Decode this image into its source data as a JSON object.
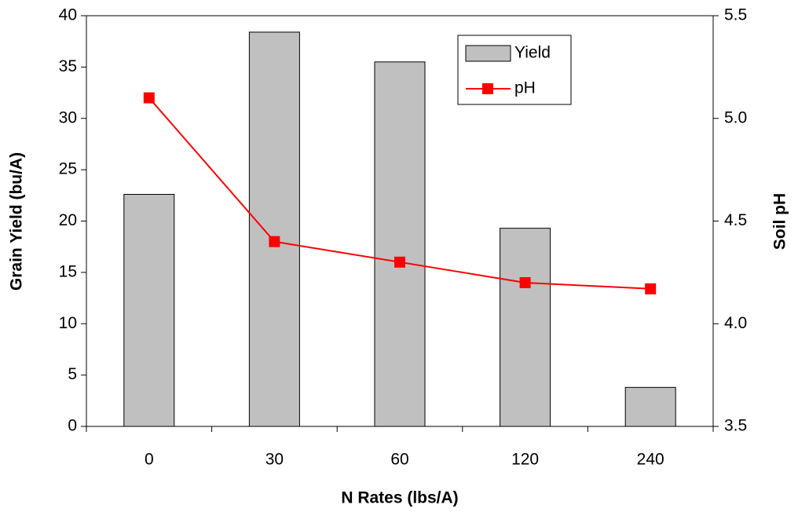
{
  "chart_data": {
    "type": "bar",
    "x_label": "N Rates (lbs/A)",
    "y_label": "Grain Yield (bu/A)",
    "y2_label": "Soil pH",
    "categories": [
      "0",
      "30",
      "60",
      "120",
      "240"
    ],
    "series": [
      {
        "name": "Yield",
        "type": "bar",
        "color": "#c0c0c0",
        "values": [
          22.6,
          38.4,
          35.5,
          19.3,
          3.8
        ]
      },
      {
        "name": "pH",
        "type": "line",
        "axis": "y2",
        "color": "#ff0000",
        "values": [
          5.1,
          4.4,
          4.3,
          4.2,
          4.17
        ]
      }
    ],
    "ylim": [
      0,
      40
    ],
    "yticks": [
      0,
      5,
      10,
      15,
      20,
      25,
      30,
      35,
      40
    ],
    "y2lim": [
      3.5,
      5.5
    ],
    "y2ticks": [
      3.5,
      {
        "value": 4,
        "label": "4.0"
      },
      4.5,
      {
        "value": 5,
        "label": "5.0"
      },
      5.5
    ]
  }
}
